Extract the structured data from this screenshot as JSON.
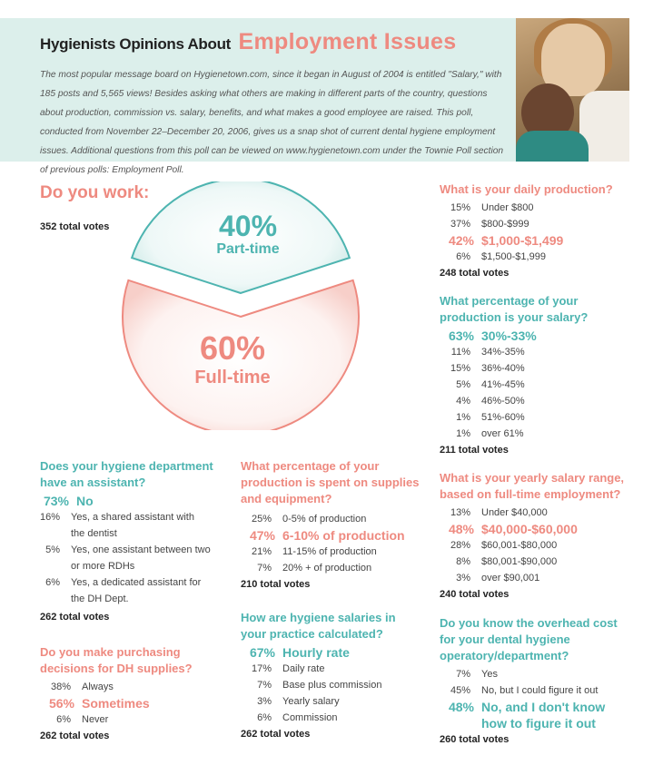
{
  "header": {
    "title_small": "Hygienists Opinions About",
    "title_big": "Employment Issues",
    "intro": "The most popular message board on Hygienetown.com, since it began in August of 2004 is entitled \"Salary,\" with 185 posts and 5,565 views! Besides asking what others are making in different parts of the country, questions about production, commission vs. salary, benefits, and what makes a good employee are raised. This poll, conducted from November 22–December 20, 2006, gives us a snap shot of current dental hygiene employment issues. Additional questions from this poll can be viewed on www.hygienetown.com under the Townie Poll section of previous polls: Employment Poll."
  },
  "work": {
    "title": "Do you work:",
    "total": "352 total votes",
    "part_pct": "40%",
    "part_label": "Part-time",
    "full_pct": "60%",
    "full_label": "Full-time"
  },
  "chart_data": {
    "type": "pie",
    "categories": [
      "Part-time",
      "Full-time"
    ],
    "values": [
      40,
      60
    ],
    "colors": [
      "#4db4b0",
      "#ee8a80"
    ]
  },
  "assistant": {
    "question": "Does your hygiene department have an assistant?",
    "answers": [
      {
        "pct": "73%",
        "text": "No"
      },
      {
        "pct": "16%",
        "text": "Yes, a shared assistant with the dentist"
      },
      {
        "pct": "5%",
        "text": "Yes, one assistant between two or more RDHs"
      },
      {
        "pct": "6%",
        "text": "Yes, a dedicated assistant for the DH Dept."
      }
    ],
    "total": "262 total votes"
  },
  "purchasing": {
    "question": "Do you make purchasing decisions for DH supplies?",
    "answers": [
      {
        "pct": "38%",
        "text": "Always"
      },
      {
        "pct": "56%",
        "text": "Sometimes"
      },
      {
        "pct": "6%",
        "text": "Never"
      }
    ],
    "total": "262 total votes"
  },
  "supplies": {
    "question": "What percentage of your production is spent on supplies and equipment?",
    "answers": [
      {
        "pct": "25%",
        "text": "0-5% of production"
      },
      {
        "pct": "47%",
        "text": "6-10% of production"
      },
      {
        "pct": "21%",
        "text": "11-15% of production"
      },
      {
        "pct": "7%",
        "text": "20% + of production"
      }
    ],
    "total": "210 total votes"
  },
  "salaries": {
    "question": "How are hygiene salaries in your practice calculated?",
    "answers": [
      {
        "pct": "67%",
        "text": "Hourly rate"
      },
      {
        "pct": "17%",
        "text": "Daily rate"
      },
      {
        "pct": "7%",
        "text": "Base plus commission"
      },
      {
        "pct": "3%",
        "text": "Yearly salary"
      },
      {
        "pct": "6%",
        "text": "Commission"
      }
    ],
    "total": "262 total votes"
  },
  "daily": {
    "question": "What is your daily production?",
    "answers": [
      {
        "pct": "15%",
        "text": "Under $800"
      },
      {
        "pct": "37%",
        "text": "$800-$999"
      },
      {
        "pct": "42%",
        "text": "$1,000-$1,499"
      },
      {
        "pct": "6%",
        "text": "$1,500-$1,999"
      }
    ],
    "total": "248 total votes"
  },
  "salary_pct": {
    "question": "What percentage of your production is your salary?",
    "answers": [
      {
        "pct": "63%",
        "text": "30%-33%"
      },
      {
        "pct": "11%",
        "text": "34%-35%"
      },
      {
        "pct": "15%",
        "text": "36%-40%"
      },
      {
        "pct": "5%",
        "text": "41%-45%"
      },
      {
        "pct": "4%",
        "text": "46%-50%"
      },
      {
        "pct": "1%",
        "text": "51%-60%"
      },
      {
        "pct": "1%",
        "text": "over 61%"
      }
    ],
    "total": "211 total votes"
  },
  "yearly": {
    "question": "What is your yearly salary range, based on full-time employment?",
    "answers": [
      {
        "pct": "13%",
        "text": "Under $40,000"
      },
      {
        "pct": "48%",
        "text": "$40,000-$60,000"
      },
      {
        "pct": "28%",
        "text": "$60,001-$80,000"
      },
      {
        "pct": "8%",
        "text": "$80,001-$90,000"
      },
      {
        "pct": "3%",
        "text": "over $90,001"
      }
    ],
    "total": "240 total votes"
  },
  "overhead": {
    "question": "Do you know the overhead cost for your dental hygiene operatory/department?",
    "answers": [
      {
        "pct": "7%",
        "text": "Yes"
      },
      {
        "pct": "45%",
        "text": "No, but I could figure it out"
      },
      {
        "pct": "48%",
        "text": "No, and I don't know how to figure it out"
      }
    ],
    "total": "260 total votes"
  }
}
